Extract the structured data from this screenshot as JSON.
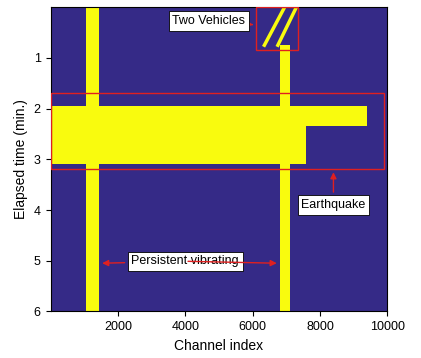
{
  "chart_data": {
    "type": "heatmap",
    "xlabel": "Channel index",
    "ylabel": "Elapsed time (min.)",
    "xlim": [
      0,
      10000
    ],
    "ylim": [
      6,
      0
    ],
    "xticks": [
      2000,
      4000,
      6000,
      8000,
      10000
    ],
    "yticks": [
      1,
      2,
      3,
      4,
      5,
      6
    ],
    "color": "#f9fb0e",
    "bands": [
      {
        "channel": [
          1050,
          1450
        ],
        "time": [
          0,
          6
        ]
      },
      {
        "channel": [
          6800,
          7100
        ],
        "time": [
          0.75,
          6
        ]
      },
      {
        "channel": [
          0,
          9400
        ],
        "time": [
          1.95,
          2.35
        ]
      },
      {
        "channel": [
          0,
          7600
        ],
        "time": [
          2.35,
          3.1
        ]
      }
    ],
    "tracks": [
      {
        "channel": [
          6350,
          6950
        ],
        "time": [
          0.75,
          0
        ]
      },
      {
        "channel": [
          6750,
          7300
        ],
        "time": [
          0.75,
          0
        ]
      }
    ],
    "annotations": [
      {
        "text": "Two Vehicles",
        "box": {
          "channel": [
            6100,
            7350
          ],
          "time": [
            0,
            0.85
          ]
        },
        "points": [
          [
            6100,
            0.35
          ]
        ]
      },
      {
        "text": "Earthquake",
        "box": {
          "channel": [
            0,
            9900
          ],
          "time": [
            1.7,
            3.2
          ]
        },
        "points": [
          [
            8400,
            3.2
          ]
        ]
      },
      {
        "text": "Persistent vibrating",
        "points": [
          [
            1450,
            5.05
          ],
          [
            6800,
            5.05
          ]
        ]
      }
    ]
  }
}
